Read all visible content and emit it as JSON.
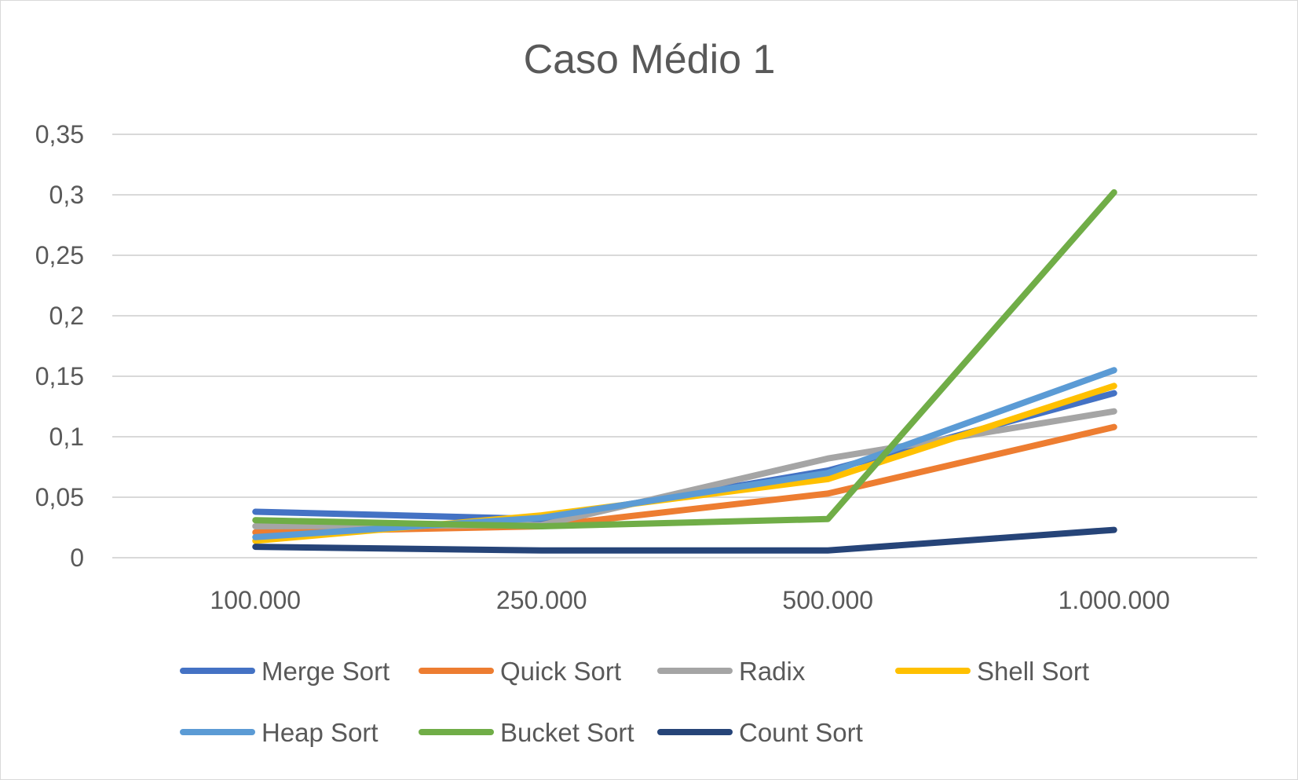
{
  "chart_data": {
    "type": "line",
    "title": "Caso Médio 1",
    "xlabel": "",
    "ylabel": "",
    "categories": [
      "100.000",
      "250.000",
      "500.000",
      "1.000.000"
    ],
    "ylim": [
      0,
      0.35
    ],
    "y_ticks": [
      0,
      0.05,
      0.1,
      0.15,
      0.2,
      0.25,
      0.3,
      0.35
    ],
    "y_tick_labels": [
      "0",
      "0,05",
      "0,1",
      "0,15",
      "0,2",
      "0,25",
      "0,3",
      "0,35"
    ],
    "grid": true,
    "legend_position": "bottom",
    "series": [
      {
        "name": "Merge Sort",
        "color": "#4472c4",
        "values": [
          0.038,
          0.032,
          0.072,
          0.136
        ]
      },
      {
        "name": "Quick Sort",
        "color": "#ed7d31",
        "values": [
          0.021,
          0.026,
          0.053,
          0.108
        ]
      },
      {
        "name": "Radix",
        "color": "#a5a5a5",
        "values": [
          0.026,
          0.027,
          0.082,
          0.121
        ]
      },
      {
        "name": "Shell Sort",
        "color": "#ffc000",
        "values": [
          0.014,
          0.035,
          0.065,
          0.142
        ]
      },
      {
        "name": "Heap Sort",
        "color": "#5b9bd5",
        "values": [
          0.017,
          0.033,
          0.07,
          0.155
        ]
      },
      {
        "name": "Bucket Sort",
        "color": "#70ad47",
        "values": [
          0.031,
          0.026,
          0.032,
          0.302
        ]
      },
      {
        "name": "Count Sort",
        "color": "#264478",
        "values": [
          0.009,
          0.006,
          0.006,
          0.023
        ]
      }
    ]
  }
}
